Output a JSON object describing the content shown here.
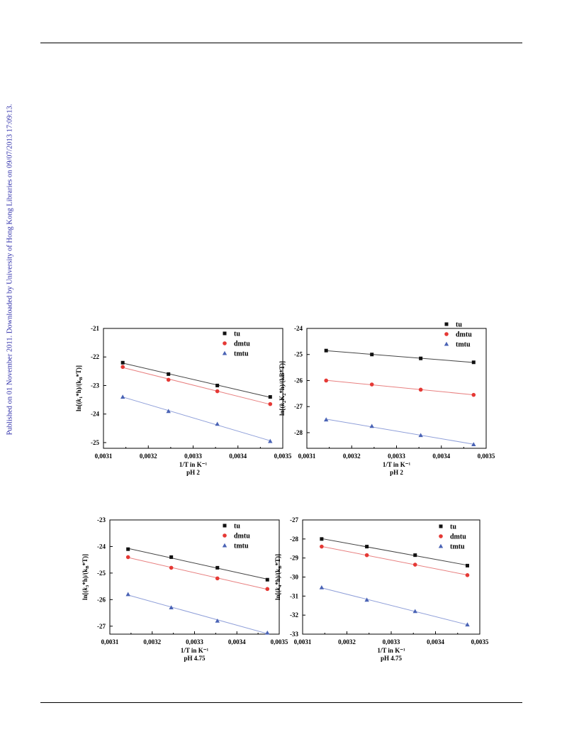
{
  "side_note": "Published on 01 November 2011. Downloaded by University of Hong Kong Libraries on 09/07/2013 17:09:13.",
  "colors": {
    "tu": "#111111",
    "dmtu": "#e53935",
    "tmtu": "#4a63b5",
    "tu_line": "#444444",
    "dmtu_line": "#e88080",
    "tmtu_line": "#8f9fd9"
  },
  "chart_data": [
    {
      "type": "scatter",
      "ylabel": "ln[(k₁*h)/(kB*T)]",
      "ylabel_parts": {
        "pre": "ln[(",
        "k": "k",
        "sub": "1",
        "post": "*h)/(k",
        "sub2": "B",
        "end": "*T)]"
      },
      "xlabel": "1/T in K⁻¹",
      "caption": "pH 2",
      "xlim": [
        0.0031,
        0.0035
      ],
      "ylim": [
        -25.2,
        -21
      ],
      "xticks": [
        "0,0031",
        "0,0032",
        "0,0033",
        "0,0034",
        "0,0035"
      ],
      "yticks": [
        "-21",
        "-22",
        "-23",
        "-24",
        "-25"
      ],
      "ytick_values": [
        -21,
        -22,
        -23,
        -24,
        -25
      ],
      "x": [
        0.003143,
        0.003245,
        0.003354,
        0.003472
      ],
      "series": [
        {
          "name": "tu",
          "marker": "square",
          "values": [
            -22.2,
            -22.6,
            -23.0,
            -23.4
          ]
        },
        {
          "name": "dmtu",
          "marker": "circle",
          "values": [
            -22.35,
            -22.8,
            -23.2,
            -23.65
          ]
        },
        {
          "name": "tmtu",
          "marker": "triangle",
          "values": [
            -23.4,
            -23.9,
            -24.35,
            -24.95
          ]
        }
      ]
    },
    {
      "type": "scatter",
      "ylabel": "ln[(k₂K₂*h)/(kB*T)]",
      "ylabel_parts": {
        "pre": "ln[(",
        "k": "k",
        "sub": "2",
        "post": "K",
        "sub2": "2",
        "end": "*h)/(kB*T)]"
      },
      "xlabel": "1/T in K⁻¹",
      "caption": "pH 2",
      "xlim": [
        0.0031,
        0.0035
      ],
      "ylim": [
        -28.6,
        -24
      ],
      "xticks": [
        "0,0031",
        "0,0032",
        "0,0033",
        "0,0034",
        "0,0035"
      ],
      "yticks": [
        "-24",
        "-25",
        "-26",
        "-27",
        "-28"
      ],
      "ytick_values": [
        -24,
        -25,
        -26,
        -27,
        -28
      ],
      "x": [
        0.003143,
        0.003245,
        0.003354,
        0.003472
      ],
      "series": [
        {
          "name": "tu",
          "marker": "square",
          "values": [
            -24.85,
            -25.0,
            -25.15,
            -25.3
          ]
        },
        {
          "name": "dmtu",
          "marker": "circle",
          "values": [
            -26.0,
            -26.15,
            -26.35,
            -26.55
          ]
        },
        {
          "name": "tmtu",
          "marker": "triangle",
          "values": [
            -27.5,
            -27.75,
            -28.1,
            -28.45
          ]
        }
      ]
    },
    {
      "type": "scatter",
      "ylabel": "ln[(k₃*h)/(kB*T)]",
      "ylabel_parts": {
        "pre": "ln[(",
        "k": "k",
        "sub": "3",
        "post": "*h)/(k",
        "sub2": "B",
        "end": "*T)]"
      },
      "xlabel": "1/T in K⁻¹",
      "caption": "pH 4.75",
      "xlim": [
        0.0031,
        0.0035
      ],
      "ylim": [
        -27.3,
        -23
      ],
      "xticks": [
        "0,0031",
        "0,0032",
        "0,0033",
        "0,0034",
        "0,0035"
      ],
      "yticks": [
        "-23",
        "-24",
        "-25",
        "-26",
        "-27"
      ],
      "ytick_values": [
        -23,
        -24,
        -25,
        -26,
        -27
      ],
      "x": [
        0.003143,
        0.003245,
        0.003354,
        0.003472
      ],
      "series": [
        {
          "name": "tu",
          "marker": "square",
          "values": [
            -24.1,
            -24.4,
            -24.8,
            -25.25
          ]
        },
        {
          "name": "dmtu",
          "marker": "circle",
          "values": [
            -24.4,
            -24.8,
            -25.2,
            -25.6
          ]
        },
        {
          "name": "tmtu",
          "marker": "triangle",
          "values": [
            -25.8,
            -26.3,
            -26.8,
            -27.25
          ]
        }
      ]
    },
    {
      "type": "scatter",
      "ylabel": "ln[(k₄*h)/(kB*T)]",
      "ylabel_parts": {
        "pre": "ln[(",
        "k": "k",
        "sub": "4",
        "post": "*h)/(k",
        "sub2": "B",
        "end": "*T)]"
      },
      "xlabel": "1/T in K⁻¹",
      "caption": "pH 4.75",
      "xlim": [
        0.0031,
        0.0035
      ],
      "ylim": [
        -33,
        -27
      ],
      "xticks": [
        "0,0031",
        "0,0032",
        "0,0033",
        "0,0034",
        "0,0035"
      ],
      "yticks": [
        "-27",
        "-28",
        "-29",
        "-30",
        "-31",
        "-32",
        "-33"
      ],
      "ytick_values": [
        -27,
        -28,
        -29,
        -30,
        -31,
        -32,
        -33
      ],
      "x": [
        0.003143,
        0.003245,
        0.003354,
        0.003472
      ],
      "series": [
        {
          "name": "tu",
          "marker": "square",
          "values": [
            -28.0,
            -28.4,
            -28.85,
            -29.4
          ]
        },
        {
          "name": "dmtu",
          "marker": "circle",
          "values": [
            -28.4,
            -28.85,
            -29.35,
            -29.9
          ]
        },
        {
          "name": "tmtu",
          "marker": "triangle",
          "values": [
            -30.55,
            -31.2,
            -31.8,
            -32.5
          ]
        }
      ]
    }
  ]
}
